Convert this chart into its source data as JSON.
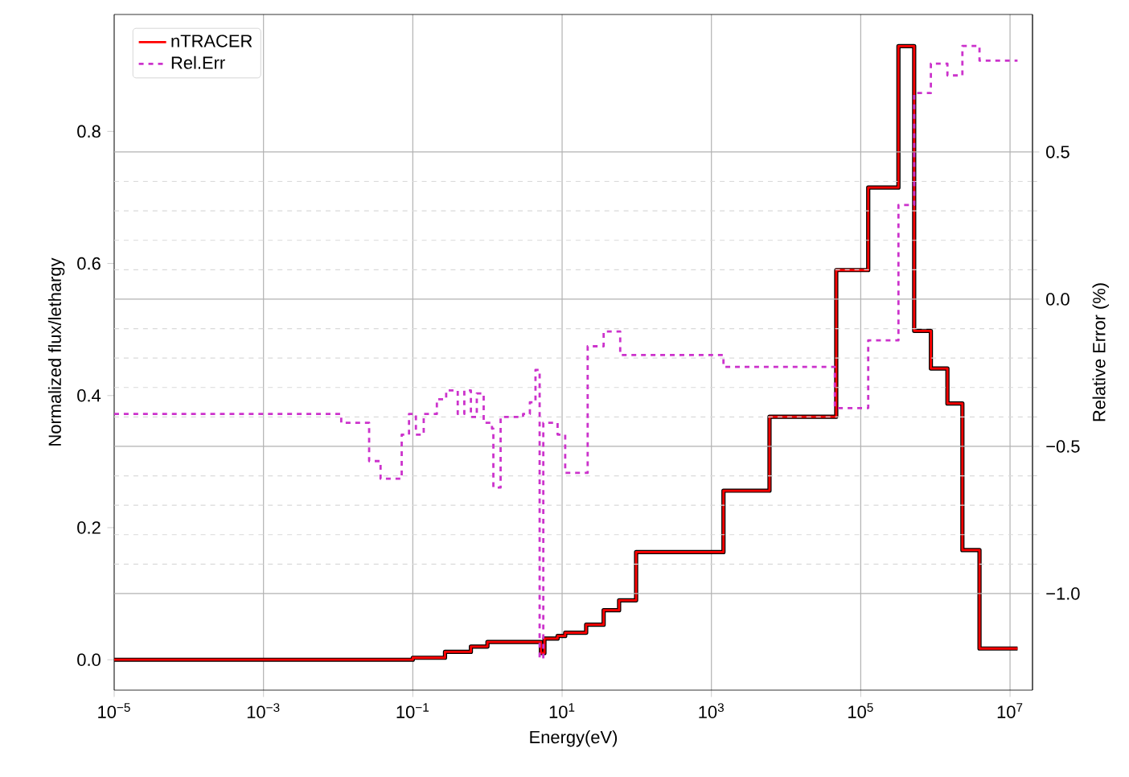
{
  "chart_data": {
    "type": "step",
    "xlabel": "Energy(eV)",
    "ylabel": "Normalized flux/lethargy",
    "y2label": "Relative Error (%)",
    "log": "x",
    "grid": true,
    "legend": "top left",
    "xlim": [
      1e-05,
      20000000.0
    ],
    "xticks": [
      {
        "value": 1e-05,
        "label": "10$^{−5}$"
      },
      {
        "value": 0.001,
        "label": "10$^{−3}$"
      },
      {
        "value": 0.1,
        "label": "10$^{−1}$"
      },
      {
        "value": 10,
        "label": "10$^{1}$"
      },
      {
        "value": 1000,
        "label": "10$^{3}$"
      },
      {
        "value": 100000,
        "label": "10$^{5}$"
      },
      {
        "value": 10000000,
        "label": "10$^{7}$"
      }
    ],
    "ylim": [
      -0.046,
      0.977
    ],
    "yticks": [
      {
        "value": 0,
        "label": "0.0"
      },
      {
        "value": 0.2,
        "label": "0.2"
      },
      {
        "value": 0.4,
        "label": "0.4"
      },
      {
        "value": 0.6,
        "label": "0.6"
      },
      {
        "value": 0.8,
        "label": "0.8"
      }
    ],
    "y2lim": [
      -1.328,
      0.967
    ],
    "y2ticks": [
      {
        "value": -1.0,
        "label": "−1.0"
      },
      {
        "value": -0.5,
        "label": "−0.5"
      },
      {
        "value": 0.0,
        "label": "0.0"
      },
      {
        "value": 0.5,
        "label": "0.5"
      }
    ],
    "series": [
      {
        "color": "#000000",
        "x": [
          1e-05,
          0.034,
          0.1,
          0.27,
          0.6,
          1.0,
          3.2,
          5.2,
          5.8,
          8.7,
          11,
          21,
          36,
          58,
          98,
          1450,
          6000,
          47000,
          126000,
          320000,
          520000,
          870000,
          1450000,
          2300000,
          3900000,
          12600000
        ],
        "values": [
          0,
          0,
          0.003,
          0.012,
          0.02,
          0.027,
          0.027,
          0.01,
          0.032,
          0.036,
          0.041,
          0.053,
          0.075,
          0.09,
          0.163,
          0.256,
          0.368,
          0.59,
          0.715,
          0.929,
          0.498,
          0.441,
          0.388,
          0.166,
          0.017,
          0.017
        ]
      },
      {
        "name": "nTRACER",
        "color": "#ff0000",
        "x": [
          1e-05,
          0.034,
          0.1,
          0.27,
          0.6,
          1.0,
          3.2,
          5.2,
          5.8,
          8.7,
          11,
          21,
          36,
          58,
          98,
          1450,
          6000,
          47000,
          126000,
          320000,
          520000,
          870000,
          1450000,
          2300000,
          3900000,
          12600000
        ],
        "values": [
          0,
          0,
          0.003,
          0.012,
          0.02,
          0.027,
          0.027,
          0.01,
          0.032,
          0.036,
          0.041,
          0.053,
          0.075,
          0.09,
          0.163,
          0.256,
          0.368,
          0.59,
          0.715,
          0.929,
          0.498,
          0.441,
          0.388,
          0.166,
          0.017,
          0.017
        ]
      },
      {
        "name": "Rel.Err",
        "color": "#cc33cc",
        "axis": "y2",
        "line_style": "dashed",
        "x": [
          1e-05,
          0.011,
          0.026,
          0.037,
          0.071,
          0.089,
          0.11,
          0.14,
          0.21,
          0.28,
          0.4,
          0.49,
          0.6,
          0.72,
          0.89,
          1.15,
          1.2,
          1.5,
          3.0,
          3.7,
          4.4,
          5.0,
          5.6,
          8.7,
          11,
          22,
          36,
          60,
          1450,
          45000,
          126000,
          320000,
          520000,
          870000,
          1450000,
          2300000,
          3900000,
          12600000
        ],
        "values": [
          -0.39,
          -0.42,
          -0.55,
          -0.61,
          -0.46,
          -0.39,
          -0.46,
          -0.39,
          -0.34,
          -0.31,
          -0.39,
          -0.31,
          -0.4,
          -0.32,
          -0.42,
          -0.44,
          -0.64,
          -0.4,
          -0.39,
          -0.35,
          -0.24,
          -1.22,
          -0.42,
          -0.46,
          -0.59,
          -0.16,
          -0.11,
          -0.19,
          -0.23,
          -0.37,
          -0.14,
          0.32,
          0.7,
          0.8,
          0.76,
          0.86,
          0.81,
          0.81
        ]
      }
    ]
  }
}
